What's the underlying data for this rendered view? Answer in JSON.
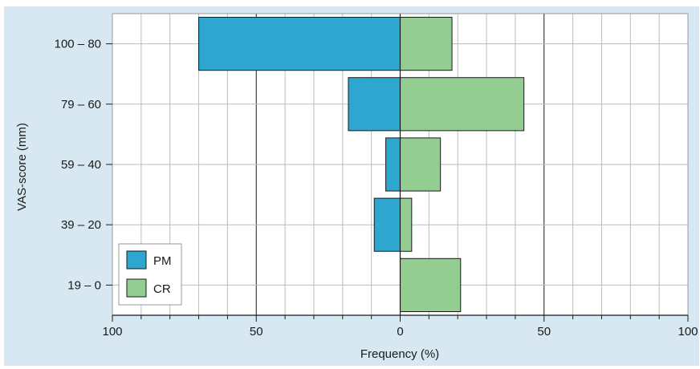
{
  "chart_data": {
    "type": "bar",
    "orientation": "horizontal-diverging",
    "xlabel": "Frequency (%)",
    "ylabel": "VAS-score (mm)",
    "xlim": [
      -100,
      100
    ],
    "x_major_ticks": [
      -100,
      -50,
      0,
      50,
      100
    ],
    "x_tick_labels": [
      "100",
      "50",
      "0",
      "50",
      "100"
    ],
    "x_minor_step": 10,
    "categories": [
      "100 – 80",
      "79 – 60",
      "59 – 40",
      "39 – 20",
      "19 – 0"
    ],
    "series": [
      {
        "name": "PM",
        "values": [
          70,
          18,
          5,
          9,
          0
        ],
        "color": "#2ea6cf",
        "side": "left"
      },
      {
        "name": "CR",
        "values": [
          18,
          43,
          14,
          4,
          21
        ],
        "color": "#93cd92",
        "side": "right"
      }
    ],
    "grid": true,
    "legend": "bottom-left"
  }
}
